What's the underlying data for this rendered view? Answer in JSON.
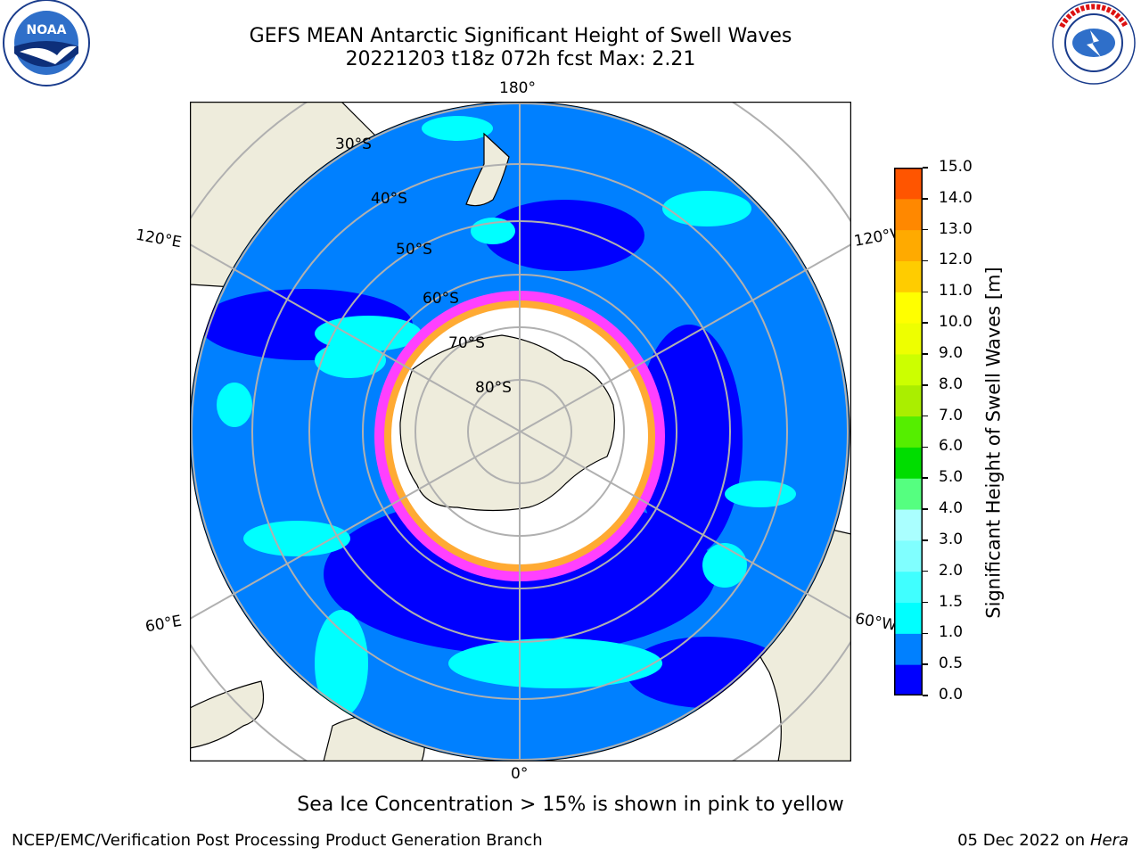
{
  "title": {
    "line1": "GEFS MEAN Antarctic Significant Height of Swell Waves",
    "line2": "20221203 t18z 072h fcst    Max: 2.21"
  },
  "logos": {
    "left": "NOAA",
    "right": "NATIONAL WEATHER SERVICE"
  },
  "map": {
    "projection": "south-polar-stereographic",
    "longitude_labels": [
      "180°",
      "120°E",
      "120°W",
      "60°E",
      "60°W",
      "0°"
    ],
    "latitude_labels": [
      "30°S",
      "40°S",
      "50°S",
      "60°S",
      "70°S",
      "80°S"
    ]
  },
  "colorbar": {
    "label": "Significant Height of Swell Waves [m]",
    "ticks": [
      "0.0",
      "0.5",
      "1.0",
      "1.5",
      "2.0",
      "3.0",
      "4.0",
      "5.0",
      "6.0",
      "7.0",
      "8.0",
      "9.0",
      "10.0",
      "11.0",
      "12.0",
      "13.0",
      "14.0",
      "15.0"
    ],
    "colors": [
      "#0000ff",
      "#0080ff",
      "#00ffff",
      "#40ffff",
      "#80ffff",
      "#aaffff",
      "#55ff80",
      "#00dd00",
      "#55ee00",
      "#aaee00",
      "#ccff00",
      "#eeff00",
      "#ffff00",
      "#ffcc00",
      "#ffaa00",
      "#ff8800",
      "#ff5500",
      "#ff2200",
      "#ff0000"
    ]
  },
  "footer": {
    "note": "Sea Ice Concentration > 15% is shown in pink to yellow",
    "credit": "NCEP/EMC/Verification Post Processing Product Generation Branch",
    "date": "05 Dec 2022 on",
    "host": "Hera"
  }
}
